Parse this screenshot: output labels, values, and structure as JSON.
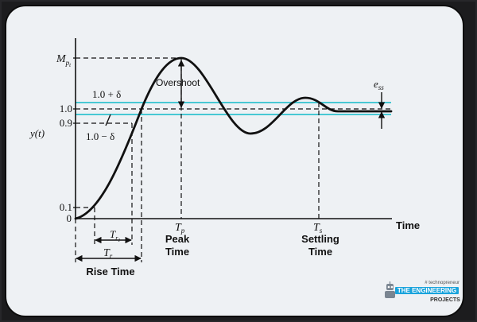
{
  "labels": {
    "mp_main": "M",
    "mp_sub": "p",
    "mp_subsub": "t",
    "tick_1_0": "1.0",
    "tick_0_9": "0.9",
    "tick_0_1": "0.1",
    "tick_0": "0",
    "y_label": "y(t)",
    "upper_band": "1.0 + δ",
    "lower_band": "1.0 − δ",
    "overshoot": "Overshoot",
    "ess_main": "e",
    "ess_sub": "ss",
    "x_axis": "Time",
    "tp_main": "T",
    "tp_sub": "p",
    "ts_main": "T",
    "ts_sub": "s",
    "peak_time_1": "Peak",
    "peak_time_2": "Time",
    "settling_time_1": "Settling",
    "settling_time_2": "Time",
    "tr1_main": "T",
    "tr1_sub": "r",
    "tr1_subsub": "1",
    "tr_main": "T",
    "tr_sub": "r",
    "rise_time": "Rise Time"
  },
  "logo": {
    "tagline": "# technopreneur",
    "name": "THE ENGINEERING",
    "sub": "PROJECTS"
  },
  "colors": {
    "band": "#48c8d4",
    "curve": "#111111",
    "card_bg": "#eef1f4",
    "logo_accent": "#19a3dc"
  }
}
